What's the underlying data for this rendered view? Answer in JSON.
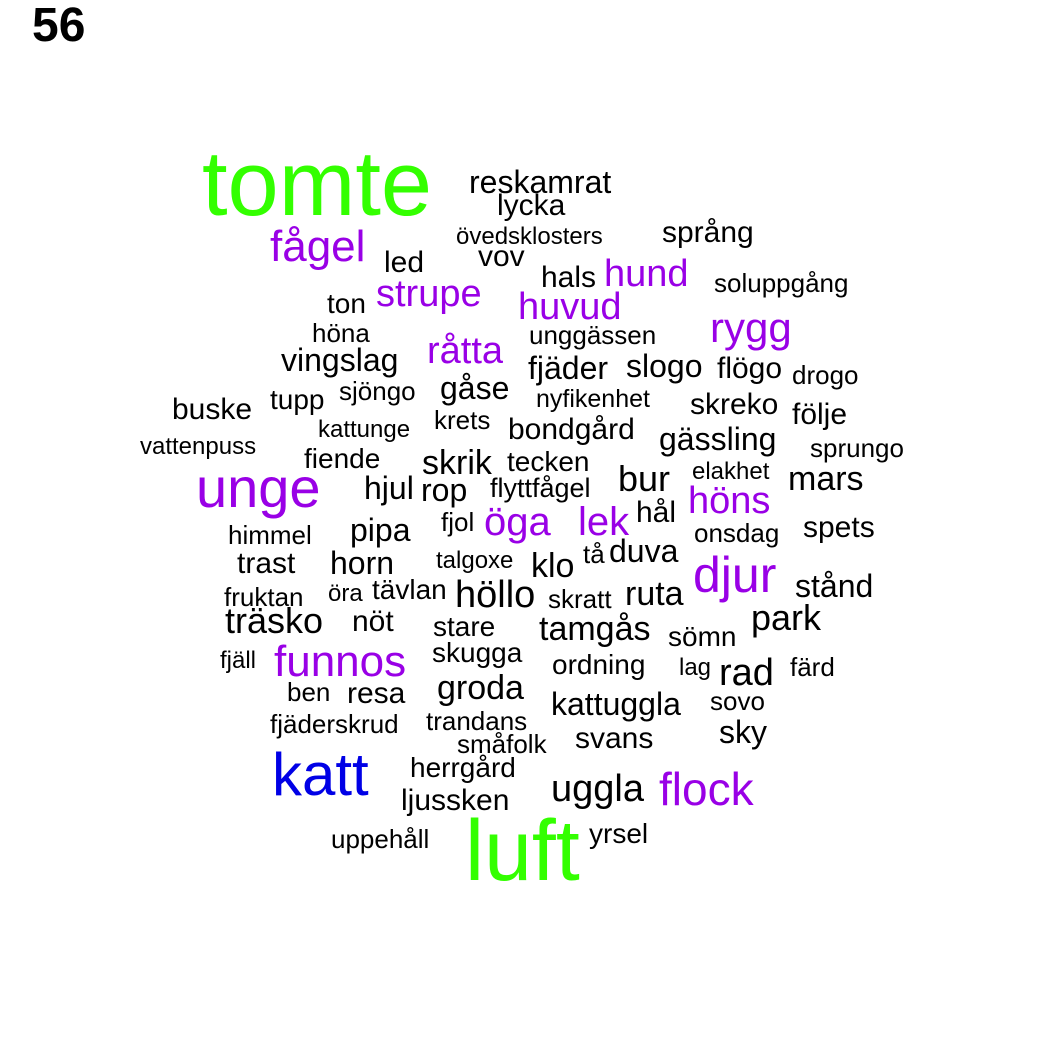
{
  "page_number": "56",
  "colors": {
    "green": "#33ff00",
    "purple": "#9900e6",
    "blue": "#0000e6",
    "black": "#000000"
  },
  "words": {
    "tomte": "tomte",
    "luft": "luft",
    "katt": "katt",
    "unge": "unge",
    "fagel": "fågel",
    "strupe": "strupe",
    "hund": "hund",
    "huvud": "huvud",
    "rygg": "rygg",
    "ratta": "råtta",
    "hons": "höns",
    "oga": "öga",
    "lek": "lek",
    "djur": "djur",
    "funnos": "funnos",
    "flock": "flock",
    "reskamrat": "reskamrat",
    "lycka": "lycka",
    "ovedsklosters": "övedsklosters",
    "sprang": "språng",
    "led": "led",
    "vov": "vov",
    "hals": "hals",
    "soluppgang": "soluppgång",
    "ton": "ton",
    "hona": "höna",
    "unggassen": "unggässen",
    "vingslag": "vingslag",
    "fjader": "fjäder",
    "slogo": "slogo",
    "flogo": "flögo",
    "drogo": "drogo",
    "tupp": "tupp",
    "sjongo": "sjöngo",
    "gase": "gåse",
    "nyfikenhet": "nyfikenhet",
    "buske": "buske",
    "skreko": "skreko",
    "krets": "krets",
    "folje": "följe",
    "kattunge": "kattunge",
    "bondgard": "bondgård",
    "gassling": "gässling",
    "vattenpuss": "vattenpuss",
    "sprungo": "sprungo",
    "fiende": "fiende",
    "skrik": "skrik",
    "tecken": "tecken",
    "elakhet": "elakhet",
    "bur": "bur",
    "mars": "mars",
    "hjul": "hjul",
    "rop": "rop",
    "flyttfagel": "flyttfågel",
    "fjol": "fjol",
    "hal": "hål",
    "himmel": "himmel",
    "pipa": "pipa",
    "onsdag": "onsdag",
    "spets": "spets",
    "trast": "trast",
    "horn": "horn",
    "talgoxe": "talgoxe",
    "klo": "klo",
    "ta": "tå",
    "duva": "duva",
    "fruktan": "fruktan",
    "ora": "öra",
    "tavlan": "tävlan",
    "hollo": "höllo",
    "skratt": "skratt",
    "ruta": "ruta",
    "stand": "stånd",
    "trasko": "träsko",
    "not": "nöt",
    "stare": "stare",
    "tamgas": "tamgås",
    "somn": "sömn",
    "park": "park",
    "fjall": "fjäll",
    "skugga": "skugga",
    "ordning": "ordning",
    "lag": "lag",
    "rad": "rad",
    "fard": "färd",
    "ben": "ben",
    "resa": "resa",
    "groda": "groda",
    "sovo": "sovo",
    "kattuggla": "kattuggla",
    "fjaderskrud": "fjäderskrud",
    "trandans": "trandans",
    "sky": "sky",
    "smafolk": "småfolk",
    "svans": "svans",
    "herrgard": "herrgård",
    "uggla": "uggla",
    "ljussken": "ljussken",
    "uppehall": "uppehåll",
    "yrsel": "yrsel"
  }
}
